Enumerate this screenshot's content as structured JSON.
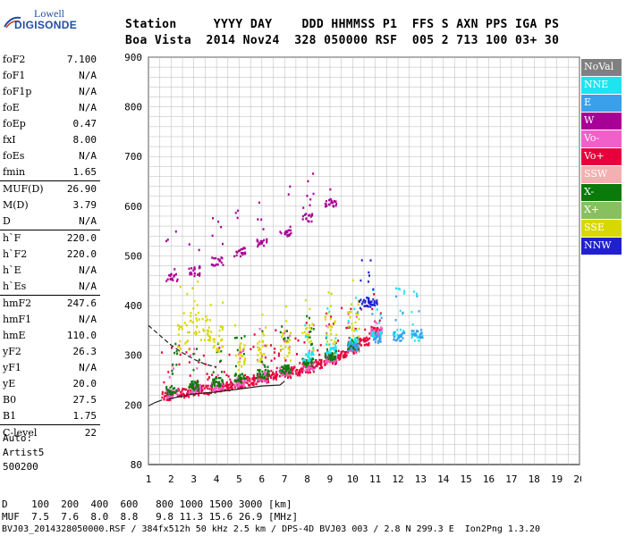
{
  "logo": {
    "line1": "Lowell",
    "line2": "DIGISONDE"
  },
  "header": {
    "row1": "Station     YYYY DAY    DDD HHMMSS P1  FFS S AXN PPS IGA PS",
    "row2": "Boa Vista  2014 Nov24  328 050000 RSF  005 2 713 100 03+ 30"
  },
  "params": [
    [
      {
        "name": "foF2",
        "value": "7.100"
      },
      {
        "name": "foF1",
        "value": "N/A"
      },
      {
        "name": "foF1p",
        "value": "N/A"
      },
      {
        "name": "foE",
        "value": "N/A"
      },
      {
        "name": "foEp",
        "value": "0.47"
      },
      {
        "name": "fxI",
        "value": "8.00"
      },
      {
        "name": "foEs",
        "value": "N/A"
      },
      {
        "name": "fmin",
        "value": "1.65"
      }
    ],
    [
      {
        "name": "MUF(D)",
        "value": "26.90"
      },
      {
        "name": "M(D)",
        "value": "3.79"
      },
      {
        "name": "D",
        "value": "N/A"
      }
    ],
    [
      {
        "name": "h`F",
        "value": "220.0"
      },
      {
        "name": "h`F2",
        "value": "220.0"
      },
      {
        "name": "h`E",
        "value": "N/A"
      },
      {
        "name": "h`Es",
        "value": "N/A"
      }
    ],
    [
      {
        "name": "hmF2",
        "value": "247.6"
      },
      {
        "name": "hmF1",
        "value": "N/A"
      },
      {
        "name": "hmE",
        "value": "110.0"
      },
      {
        "name": "yF2",
        "value": "26.3"
      },
      {
        "name": "yF1",
        "value": "N/A"
      },
      {
        "name": "yE",
        "value": "20.0"
      },
      {
        "name": "B0",
        "value": "27.5"
      },
      {
        "name": "B1",
        "value": "1.75"
      }
    ],
    [
      {
        "name": "C-level",
        "value": "22"
      }
    ]
  ],
  "autoscale": {
    "line1": "Auto:",
    "line2": "Artist5",
    "line3": "500200"
  },
  "legend": [
    {
      "label": "NoVal",
      "color": "#808080"
    },
    {
      "label": "NNE",
      "color": "#1ee4f0"
    },
    {
      "label": "E",
      "color": "#3aa0ec"
    },
    {
      "label": "W",
      "color": "#a80096"
    },
    {
      "label": "Vo-",
      "color": "#f060c8"
    },
    {
      "label": "Vo+",
      "color": "#e8003c"
    },
    {
      "label": "SSW",
      "color": "#f4b0b0"
    },
    {
      "label": "X-",
      "color": "#0a7a0a"
    },
    {
      "label": "X+",
      "color": "#88c060"
    },
    {
      "label": "SSE",
      "color": "#d8d800"
    },
    {
      "label": "NNW",
      "color": "#2020d0"
    }
  ],
  "footer": {
    "line1": "D    100  200  400  600   800 1000 1500 3000 [km]",
    "line2": "MUF  7.5  7.6  8.0  8.8   9.8 11.3 15.6 26.9 [MHz]",
    "line3": "BVJ03_2014328050000.RSF / 384fx512h 50 kHz 2.5 km / DPS-4D BVJ03 003 / 2.8 N 299.3 E  Ion2Png 1.3.20"
  },
  "chart_data": {
    "type": "scatter",
    "title": "",
    "xlabel": "",
    "ylabel": "",
    "xlim": [
      1,
      20
    ],
    "ylim": [
      80,
      900
    ],
    "x_ticks": [
      1,
      2,
      3,
      4,
      5,
      6,
      7,
      8,
      9,
      10,
      11,
      12,
      13,
      14,
      15,
      16,
      17,
      18,
      19,
      20
    ],
    "y_ticks": [
      80,
      200,
      300,
      400,
      500,
      600,
      700,
      800,
      900
    ],
    "grid": true,
    "series": [
      {
        "name": "F-layer O-trace (Vo+)",
        "color": "#e8003c",
        "x": [
          1.8,
          2.5,
          3,
          3.5,
          4,
          4.5,
          5,
          5.5,
          6,
          6.5,
          7,
          7.5,
          8,
          8.5,
          9,
          9.5,
          10,
          10.5,
          11
        ],
        "y": [
          220,
          226,
          230,
          232,
          236,
          240,
          244,
          250,
          256,
          262,
          266,
          270,
          276,
          284,
          292,
          302,
          315,
          330,
          352
        ]
      },
      {
        "name": "F-layer O-trace (Vo-)",
        "color": "#f060c8",
        "x": [
          2,
          3,
          4,
          5,
          6,
          7,
          8,
          9,
          10,
          11
        ],
        "y": [
          224,
          234,
          240,
          248,
          258,
          270,
          280,
          296,
          318,
          350
        ]
      },
      {
        "name": "F-layer X-trace (X-)",
        "color": "#0a7a0a",
        "x": [
          2,
          3,
          4,
          5,
          6,
          7,
          8,
          9,
          10
        ],
        "y": [
          232,
          240,
          248,
          256,
          264,
          274,
          288,
          302,
          322
        ]
      },
      {
        "name": "Diffuse F echoes (SSE)",
        "color": "#d8d800",
        "x": [
          2.5,
          3,
          3.5,
          4,
          5,
          6,
          7,
          8,
          9,
          10
        ],
        "y": [
          340,
          370,
          360,
          330,
          300,
          320,
          320,
          340,
          350,
          360
        ]
      },
      {
        "name": "Oblique echoes (NNE)",
        "color": "#1ee4f0",
        "x": [
          8,
          9,
          10,
          11,
          12,
          12.8
        ],
        "y": [
          300,
          315,
          330,
          345,
          345,
          340
        ]
      },
      {
        "name": "Oblique echoes (E)",
        "color": "#3aa0ec",
        "x": [
          10,
          11,
          12,
          12.8
        ],
        "y": [
          320,
          335,
          340,
          345
        ]
      },
      {
        "name": "Multiple echoes (W)",
        "color": "#a80096",
        "x": [
          2,
          3,
          4,
          5,
          6,
          7,
          8,
          9
        ],
        "y": [
          460,
          470,
          490,
          510,
          530,
          550,
          580,
          610
        ]
      },
      {
        "name": "NNW",
        "color": "#2020d0",
        "x": [
          10.5,
          10.8
        ],
        "y": [
          405,
          410
        ]
      }
    ],
    "profile_lines": [
      {
        "name": "O-trace fit (solid)",
        "x": [
          1.9,
          2.5,
          3,
          4,
          5,
          6,
          6.8,
          7
        ],
        "y": [
          212,
          218,
          222,
          226,
          232,
          238,
          240,
          248
        ]
      },
      {
        "name": "E-trace fit (dashed)",
        "x": [
          1,
          1.5,
          2,
          2.5,
          3,
          3.5,
          4
        ],
        "y": [
          360,
          340,
          320,
          305,
          292,
          282,
          276
        ]
      },
      {
        "name": "low-frequency fit (solid)",
        "x": [
          1,
          1.3,
          1.6
        ],
        "y": [
          198,
          205,
          210
        ]
      }
    ]
  }
}
